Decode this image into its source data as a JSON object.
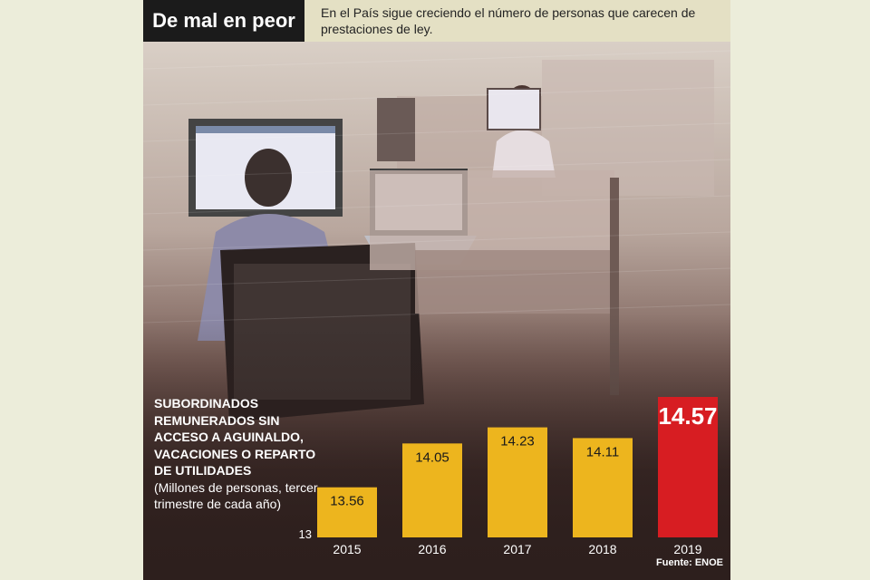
{
  "header": {
    "title": "De mal en peor",
    "subtitle": "En el País sigue creciendo el número de personas que carecen de prestaciones de ley."
  },
  "colors": {
    "bar": "#edb51e",
    "bar_highlight": "#d71d22",
    "background": "#2d1f1d",
    "header_bg": "#e4e0c4"
  },
  "chart_data": {
    "type": "bar",
    "title": "SUBORDINADOS REMUNERADOS SIN ACCESO A AGUINALDO, VACACIONES O REPARTO DE UTILIDADES",
    "ylabel": "(Millones de personas, tercer trimestre de cada año)",
    "categories": [
      "2015",
      "2016",
      "2017",
      "2018",
      "2019"
    ],
    "values": [
      13.56,
      14.05,
      14.23,
      14.11,
      14.57
    ],
    "value_labels": [
      "13.56",
      "14.05",
      "14.23",
      "14.11",
      "14.57"
    ],
    "baseline": 13,
    "baseline_label": "13",
    "ylim": [
      13,
      14.57
    ],
    "highlight_index": 4,
    "grid": false,
    "source": "Fuente: ENOE"
  }
}
